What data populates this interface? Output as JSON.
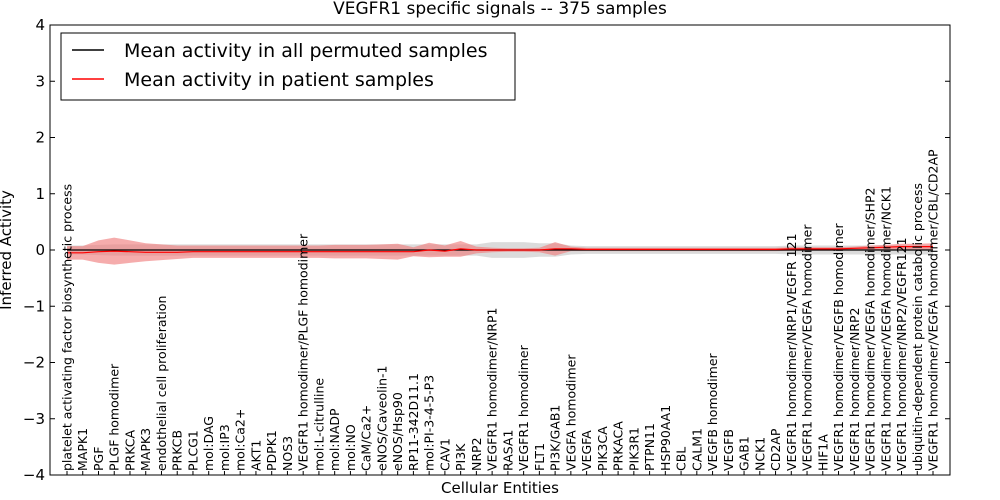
{
  "chart_data": {
    "type": "line",
    "title": "VEGFR1 specific signals -- 375 samples",
    "xlabel": "Cellular Entities",
    "ylabel": "Inferred Activity",
    "ylim": [
      -4,
      4
    ],
    "yticks": [
      "−4",
      "−3",
      "−2",
      "−1",
      "0",
      "1",
      "2",
      "3",
      "4"
    ],
    "grid": false,
    "legend_position": "top-left",
    "categories": [
      "platelet activating factor biosynthetic process",
      "MAPK1",
      "PGF",
      "PLGF homodimer",
      "PRKCA",
      "MAPK3",
      "endothelial cell proliferation",
      "PRKCB",
      "PLCG1",
      "mol:DAG",
      "mol:IP3",
      "mol:Ca2+",
      "AKT1",
      "PDPK1",
      "NOS3",
      "VEGFR1 homodimer/PLGF homodimer",
      "mol:L-citrulline",
      "mol:NADP",
      "mol:NO",
      "CaM/Ca2+",
      "eNOS/Caveolin-1",
      "eNOS/Hsp90",
      "RP11-342D11.1",
      "mol:PI-3-4-5-P3",
      "CAV1",
      "PI3K",
      "NRP2",
      "VEGFR1 homodimer/NRP1",
      "RASA1",
      "VEGFR1 homodimer",
      "FLT1",
      "PI3K/GAB1",
      "VEGFA homodimer",
      "VEGFA",
      "PIK3CA",
      "PRKACA",
      "PIK3R1",
      "PTPN11",
      "HSP90AA1",
      "CBL",
      "CALM1",
      "VEGFB homodimer",
      "VEGFB",
      "GAB1",
      "NCK1",
      "CD2AP",
      "VEGFR1 homodimer/NRP1/VEGFR 121",
      "VEGFR1 homodimer/VEGFA homodimer",
      "HIF1A",
      "VEGFR1 homodimer/VEGFB homodimer",
      "VEGFR1 homodimer/NRP2",
      "VEGFR1 homodimer/VEGFA homodimer/SHP2",
      "VEGFR1 homodimer/VEGFA homodimer/NCK1",
      "VEGFR1 homodimer/NRP2/VEGFR121",
      "ubiquitin-dependent protein catabolic process",
      "VEGFR1 homodimer/VEGFA homodimer/CBL/CD2AP"
    ],
    "series": [
      {
        "name": "Mean activity in all permuted samples",
        "color": "#000000",
        "band_color": "#bdbdbd",
        "values": [
          0,
          0,
          0,
          0,
          0,
          0,
          0,
          0,
          0,
          0,
          0,
          0,
          0,
          0,
          0,
          0,
          0,
          0,
          0,
          0,
          0,
          0,
          0,
          0,
          0,
          0,
          0,
          0,
          0,
          0,
          0,
          0,
          0,
          0,
          0,
          0,
          0,
          0,
          0,
          0,
          0,
          0,
          0,
          0,
          0,
          0,
          0,
          0,
          0,
          0,
          0,
          0,
          0,
          0,
          0,
          0
        ],
        "band_half_width": [
          0.08,
          0.08,
          0.09,
          0.1,
          0.1,
          0.1,
          0.1,
          0.1,
          0.1,
          0.1,
          0.1,
          0.1,
          0.1,
          0.1,
          0.1,
          0.1,
          0.1,
          0.1,
          0.1,
          0.1,
          0.1,
          0.1,
          0.1,
          0.1,
          0.1,
          0.1,
          0.1,
          0.14,
          0.14,
          0.14,
          0.12,
          0.12,
          0.08,
          0.07,
          0.07,
          0.07,
          0.07,
          0.07,
          0.07,
          0.07,
          0.07,
          0.07,
          0.07,
          0.07,
          0.07,
          0.07,
          0.08,
          0.08,
          0.08,
          0.08,
          0.08,
          0.08,
          0.08,
          0.08,
          0.08,
          0.08
        ]
      },
      {
        "name": "Mean activity in patient samples",
        "color": "#ff0000",
        "band_color": "#f08080",
        "values": [
          -0.05,
          -0.05,
          -0.03,
          -0.02,
          -0.03,
          -0.04,
          -0.04,
          -0.04,
          -0.03,
          -0.03,
          -0.03,
          -0.03,
          -0.03,
          -0.03,
          -0.03,
          -0.03,
          -0.03,
          -0.03,
          -0.03,
          -0.03,
          -0.03,
          -0.03,
          -0.03,
          0.0,
          -0.02,
          0.02,
          0.0,
          0.0,
          0.0,
          0.0,
          0.0,
          0.02,
          0.02,
          0.01,
          0.01,
          0.01,
          0.01,
          0.01,
          0.01,
          0.01,
          0.01,
          0.01,
          0.01,
          0.01,
          0.01,
          0.01,
          0.02,
          0.02,
          0.02,
          0.02,
          0.03,
          0.04,
          0.05,
          0.06,
          0.06,
          0.06
        ],
        "band_half_width": [
          0.12,
          0.12,
          0.2,
          0.24,
          0.2,
          0.16,
          0.14,
          0.12,
          0.11,
          0.11,
          0.11,
          0.11,
          0.11,
          0.11,
          0.11,
          0.11,
          0.11,
          0.12,
          0.12,
          0.12,
          0.13,
          0.14,
          0.08,
          0.13,
          0.1,
          0.14,
          0.06,
          0.04,
          0.03,
          0.03,
          0.04,
          0.12,
          0.04,
          0.03,
          0.03,
          0.03,
          0.03,
          0.03,
          0.03,
          0.03,
          0.03,
          0.03,
          0.03,
          0.03,
          0.03,
          0.03,
          0.03,
          0.03,
          0.03,
          0.03,
          0.03,
          0.04,
          0.04,
          0.05,
          0.05,
          0.06
        ]
      }
    ]
  }
}
